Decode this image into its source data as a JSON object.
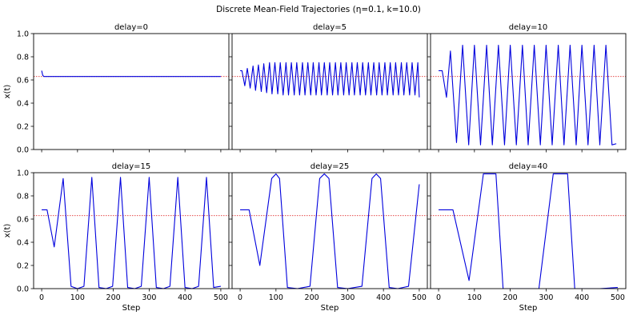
{
  "figure": {
    "title": "Discrete Mean-Field Trajectories (η=0.1, k=10.0)",
    "xlabel": "Step",
    "ylabel": "x(t)",
    "line_color": "#0000dd",
    "reference_color": "#e03030"
  },
  "chart_data": [
    {
      "type": "line",
      "title": "delay=0",
      "xlim": [
        0,
        500
      ],
      "ylim": [
        0.0,
        1.0
      ],
      "x_ticks": [
        0,
        100,
        200,
        300,
        400,
        500
      ],
      "y_ticks": [
        0.0,
        0.2,
        0.4,
        0.6,
        0.8,
        1.0
      ],
      "reference_line": 0.63,
      "series": [
        {
          "x": [
            0,
            3,
            6,
            10,
            500
          ],
          "y": [
            0.68,
            0.64,
            0.63,
            0.63,
            0.63
          ]
        }
      ]
    },
    {
      "type": "line",
      "title": "delay=5",
      "xlim": [
        0,
        500
      ],
      "ylim": [
        0.0,
        1.0
      ],
      "x_ticks": [
        0,
        100,
        200,
        300,
        400,
        500
      ],
      "y_ticks": [
        0.0,
        0.2,
        0.4,
        0.6,
        0.8,
        1.0
      ],
      "reference_line": 0.63,
      "series": [
        {
          "x": [
            0,
            5,
            13,
            20,
            28,
            36,
            43,
            51,
            59,
            66,
            74,
            82,
            89,
            97,
            105,
            112,
            120,
            128,
            135,
            143,
            151,
            158,
            166,
            174,
            181,
            189,
            197,
            204,
            212,
            220,
            227,
            235,
            243,
            250,
            258,
            266,
            273,
            281,
            289,
            296,
            304,
            312,
            319,
            327,
            335,
            342,
            350,
            358,
            365,
            373,
            381,
            388,
            396,
            404,
            411,
            419,
            427,
            434,
            442,
            450,
            457,
            465,
            473,
            480,
            488,
            496,
            500
          ],
          "y": [
            0.68,
            0.68,
            0.55,
            0.7,
            0.53,
            0.72,
            0.51,
            0.73,
            0.5,
            0.74,
            0.49,
            0.75,
            0.48,
            0.75,
            0.48,
            0.75,
            0.47,
            0.75,
            0.47,
            0.75,
            0.47,
            0.75,
            0.47,
            0.75,
            0.47,
            0.75,
            0.47,
            0.75,
            0.47,
            0.75,
            0.47,
            0.75,
            0.47,
            0.75,
            0.47,
            0.75,
            0.47,
            0.75,
            0.47,
            0.75,
            0.47,
            0.75,
            0.47,
            0.75,
            0.47,
            0.75,
            0.47,
            0.75,
            0.47,
            0.75,
            0.47,
            0.75,
            0.47,
            0.75,
            0.47,
            0.75,
            0.47,
            0.75,
            0.47,
            0.75,
            0.47,
            0.75,
            0.47,
            0.75,
            0.47,
            0.75,
            0.45
          ]
        }
      ]
    },
    {
      "type": "line",
      "title": "delay=10",
      "xlim": [
        0,
        500
      ],
      "ylim": [
        0.0,
        1.0
      ],
      "x_ticks": [
        0,
        100,
        200,
        300,
        400,
        500
      ],
      "y_ticks": [
        0.0,
        0.2,
        0.4,
        0.6,
        0.8,
        1.0
      ],
      "reference_line": 0.63,
      "series": [
        {
          "x": [
            0,
            10,
            22,
            33,
            50,
            67,
            84,
            100,
            117,
            134,
            150,
            167,
            184,
            200,
            217,
            234,
            250,
            267,
            284,
            300,
            317,
            334,
            350,
            367,
            384,
            400,
            417,
            434,
            450,
            467,
            484,
            496
          ],
          "y": [
            0.68,
            0.68,
            0.45,
            0.85,
            0.06,
            0.9,
            0.04,
            0.9,
            0.04,
            0.9,
            0.04,
            0.9,
            0.04,
            0.9,
            0.04,
            0.9,
            0.04,
            0.9,
            0.04,
            0.9,
            0.04,
            0.9,
            0.04,
            0.9,
            0.04,
            0.9,
            0.04,
            0.9,
            0.04,
            0.9,
            0.04,
            0.05
          ]
        }
      ]
    },
    {
      "type": "line",
      "title": "delay=15",
      "xlim": [
        0,
        500
      ],
      "ylim": [
        0.0,
        1.0
      ],
      "x_ticks": [
        0,
        100,
        200,
        300,
        400,
        500
      ],
      "y_ticks": [
        0.0,
        0.2,
        0.4,
        0.6,
        0.8,
        1.0
      ],
      "reference_line": 0.63,
      "series": [
        {
          "x": [
            0,
            15,
            35,
            60,
            82,
            100,
            118,
            140,
            160,
            180,
            198,
            220,
            240,
            260,
            278,
            300,
            320,
            340,
            358,
            380,
            400,
            420,
            438,
            460,
            480,
            500
          ],
          "y": [
            0.68,
            0.68,
            0.36,
            0.95,
            0.02,
            0.0,
            0.02,
            0.96,
            0.01,
            0.0,
            0.02,
            0.96,
            0.01,
            0.0,
            0.02,
            0.96,
            0.01,
            0.0,
            0.02,
            0.96,
            0.01,
            0.0,
            0.02,
            0.96,
            0.01,
            0.02
          ]
        }
      ]
    },
    {
      "type": "line",
      "title": "delay=25",
      "xlim": [
        0,
        500
      ],
      "ylim": [
        0.0,
        1.0
      ],
      "x_ticks": [
        0,
        100,
        200,
        300,
        400,
        500
      ],
      "y_ticks": [
        0.0,
        0.2,
        0.4,
        0.6,
        0.8,
        1.0
      ],
      "reference_line": 0.63,
      "series": [
        {
          "x": [
            0,
            25,
            55,
            88,
            100,
            110,
            132,
            160,
            195,
            222,
            235,
            248,
            272,
            300,
            340,
            368,
            380,
            392,
            416,
            440,
            470,
            500
          ],
          "y": [
            0.68,
            0.68,
            0.2,
            0.95,
            0.99,
            0.95,
            0.01,
            0.0,
            0.02,
            0.95,
            0.99,
            0.95,
            0.01,
            0.0,
            0.02,
            0.95,
            0.99,
            0.95,
            0.01,
            0.0,
            0.02,
            0.9
          ]
        }
      ]
    },
    {
      "type": "line",
      "title": "delay=40",
      "xlim": [
        0,
        500
      ],
      "ylim": [
        0.0,
        1.0
      ],
      "x_ticks": [
        0,
        100,
        200,
        300,
        400,
        500
      ],
      "y_ticks": [
        0.0,
        0.2,
        0.4,
        0.6,
        0.8,
        1.0
      ],
      "reference_line": 0.63,
      "series": [
        {
          "x": [
            0,
            40,
            85,
            125,
            160,
            180,
            200,
            240,
            280,
            320,
            360,
            380,
            400,
            450,
            500
          ],
          "y": [
            0.68,
            0.68,
            0.07,
            0.99,
            0.99,
            0.0,
            0.0,
            0.0,
            0.0,
            0.99,
            0.99,
            0.0,
            0.0,
            0.0,
            0.01
          ]
        }
      ]
    }
  ]
}
